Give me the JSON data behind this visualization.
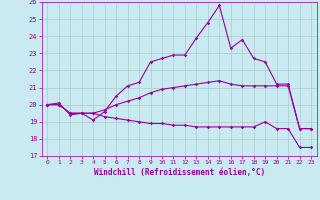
{
  "xlabel": "Windchill (Refroidissement éolien,°C)",
  "ylabel": "",
  "xlim": [
    -0.5,
    23.5
  ],
  "ylim": [
    17,
    26
  ],
  "yticks": [
    17,
    18,
    19,
    20,
    21,
    22,
    23,
    24,
    25,
    26
  ],
  "xticks": [
    0,
    1,
    2,
    3,
    4,
    5,
    6,
    7,
    8,
    9,
    10,
    11,
    12,
    13,
    14,
    15,
    16,
    17,
    18,
    19,
    20,
    21,
    22,
    23
  ],
  "background_color": "#c8eaf0",
  "grid_color": "#aacccc",
  "line_color": "#990099",
  "line1_x": [
    0,
    1,
    2,
    3,
    4,
    5,
    6,
    7,
    8,
    9,
    10,
    11,
    12,
    13,
    14,
    15,
    16,
    17,
    18,
    19,
    20,
    21,
    22,
    23
  ],
  "line1_y": [
    20.0,
    20.1,
    19.4,
    19.5,
    19.1,
    19.6,
    20.5,
    21.1,
    21.3,
    22.5,
    22.7,
    22.9,
    22.9,
    23.9,
    24.8,
    25.8,
    23.3,
    23.8,
    22.7,
    22.5,
    21.2,
    21.2,
    18.6,
    18.6
  ],
  "line2_x": [
    0,
    1,
    2,
    3,
    4,
    5,
    6,
    7,
    8,
    9,
    10,
    11,
    12,
    13,
    14,
    15,
    16,
    17,
    18,
    19,
    20,
    21,
    22,
    23
  ],
  "line2_y": [
    20.0,
    20.0,
    19.5,
    19.5,
    19.5,
    19.7,
    20.0,
    20.2,
    20.4,
    20.7,
    20.9,
    21.0,
    21.1,
    21.2,
    21.3,
    21.4,
    21.2,
    21.1,
    21.1,
    21.1,
    21.1,
    21.1,
    18.6,
    18.6
  ],
  "line3_x": [
    0,
    1,
    2,
    3,
    4,
    5,
    6,
    7,
    8,
    9,
    10,
    11,
    12,
    13,
    14,
    15,
    16,
    17,
    18,
    19,
    20,
    21,
    22,
    23
  ],
  "line3_y": [
    20.0,
    20.0,
    19.5,
    19.5,
    19.5,
    19.3,
    19.2,
    19.1,
    19.0,
    18.9,
    18.9,
    18.8,
    18.8,
    18.7,
    18.7,
    18.7,
    18.7,
    18.7,
    18.7,
    19.0,
    18.6,
    18.6,
    17.5,
    17.5
  ]
}
